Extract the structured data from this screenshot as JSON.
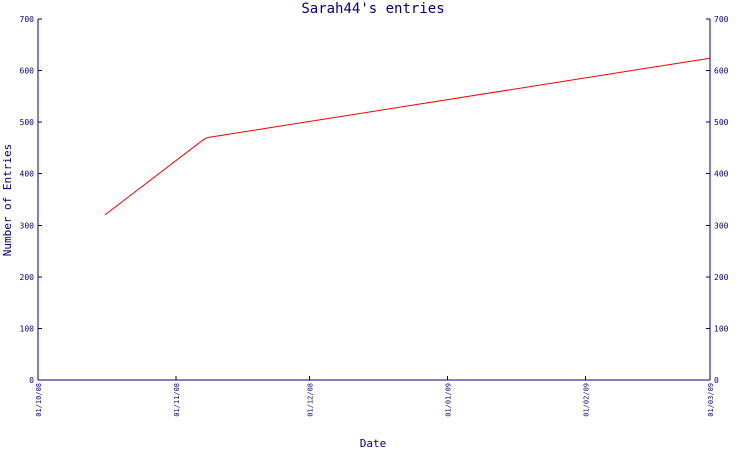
{
  "chart_data": {
    "type": "line",
    "title": "Sarah44's entries",
    "xlabel": "Date",
    "ylabel": "Number of Entries",
    "x_ticks": [
      "01/10/08",
      "01/11/08",
      "01/12/08",
      "01/01/09",
      "01/02/09",
      "01/03/09"
    ],
    "x_tick_dates": [
      "2008-10-01",
      "2008-11-01",
      "2008-12-01",
      "2009-01-01",
      "2009-02-01",
      "2009-03-01"
    ],
    "y_ticks": [
      0,
      100,
      200,
      300,
      400,
      500,
      600,
      700
    ],
    "ylim": [
      0,
      700
    ],
    "xlim": [
      "2008-10-01",
      "2009-03-01"
    ],
    "grid": false,
    "series": [
      {
        "name": "",
        "color": "#ff0000",
        "x": [
          "2008-10-16",
          "2008-11-07",
          "2008-11-08",
          "2009-03-01"
        ],
        "y": [
          320,
          465,
          470,
          624
        ]
      }
    ]
  },
  "colors": {
    "axis": "#000080",
    "line": "#ff0000",
    "background": "#ffffff"
  }
}
